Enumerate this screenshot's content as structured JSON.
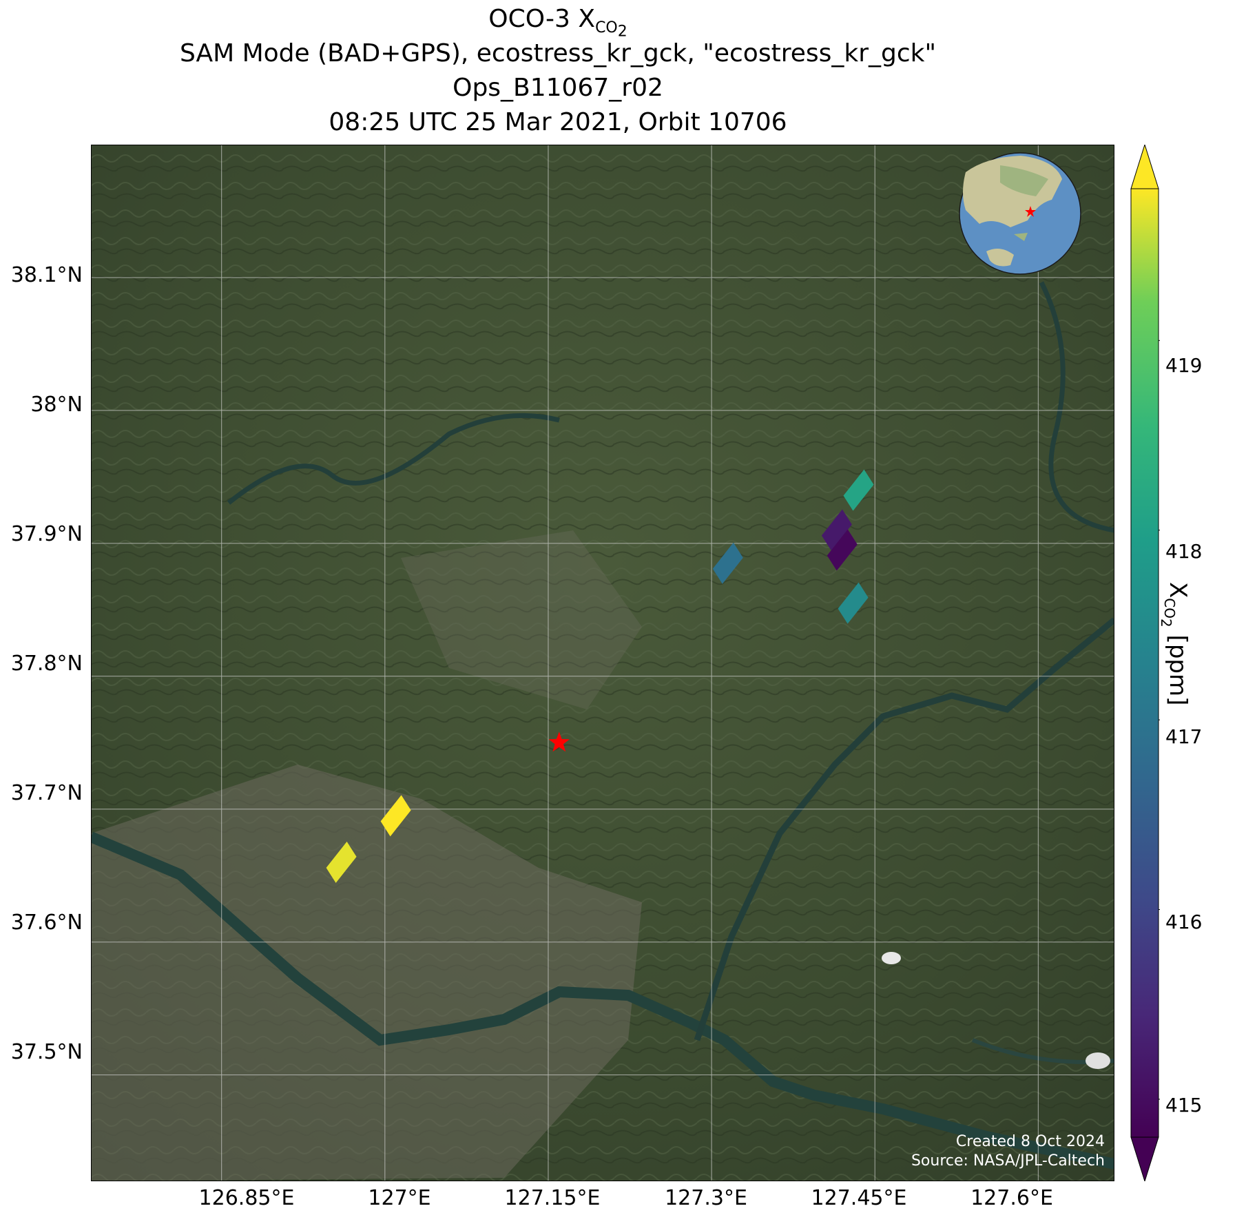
{
  "title": {
    "line1_prefix": "OCO-3 X",
    "line1_sub": "CO",
    "line1_sub2": "2",
    "line2": "SAM Mode (BAD+GPS), ecostress_kr_gck, \"ecostress_kr_gck\"",
    "line3": "Ops_B11067_r02",
    "line4": "08:25 UTC 25 Mar 2021, Orbit 10706"
  },
  "map": {
    "lat_ticks": [
      "38.1°N",
      "38°N",
      "37.9°N",
      "37.8°N",
      "37.7°N",
      "37.6°N",
      "37.5°N"
    ],
    "lon_ticks": [
      "126.85°E",
      "127°E",
      "127.15°E",
      "127.3°E",
      "127.45°E",
      "127.6°E"
    ],
    "credit_line1": "Created 8 Oct 2024",
    "credit_line2": "Source: NASA/JPL-Caltech",
    "target_marker": "red-star",
    "background": "satellite imagery of South Korea region (Seoul / Han River)"
  },
  "colorbar": {
    "label_prefix": "X",
    "label_sub": "CO",
    "label_sub2": "2",
    "label_suffix": " [ppm]",
    "ticks": [
      "415",
      "416",
      "417",
      "418",
      "419"
    ],
    "min": 414.8,
    "max": 419.8,
    "colormap": "viridis"
  },
  "chart_data": {
    "type": "scatter",
    "lon_range": [
      126.73,
      127.67
    ],
    "lat_range": [
      37.42,
      38.2
    ],
    "target": {
      "lon": 127.16,
      "lat": 37.75
    },
    "footprints": [
      {
        "lon": 127.01,
        "lat": 37.695,
        "xco2": 419.8
      },
      {
        "lon": 126.96,
        "lat": 37.66,
        "xco2": 419.7
      },
      {
        "lon": 127.315,
        "lat": 37.885,
        "xco2": 416.9
      },
      {
        "lon": 127.415,
        "lat": 37.91,
        "xco2": 415.2
      },
      {
        "lon": 127.42,
        "lat": 37.895,
        "xco2": 414.9
      },
      {
        "lon": 127.43,
        "lat": 37.855,
        "xco2": 417.5
      },
      {
        "lon": 127.435,
        "lat": 37.94,
        "xco2": 418.1
      }
    ]
  }
}
